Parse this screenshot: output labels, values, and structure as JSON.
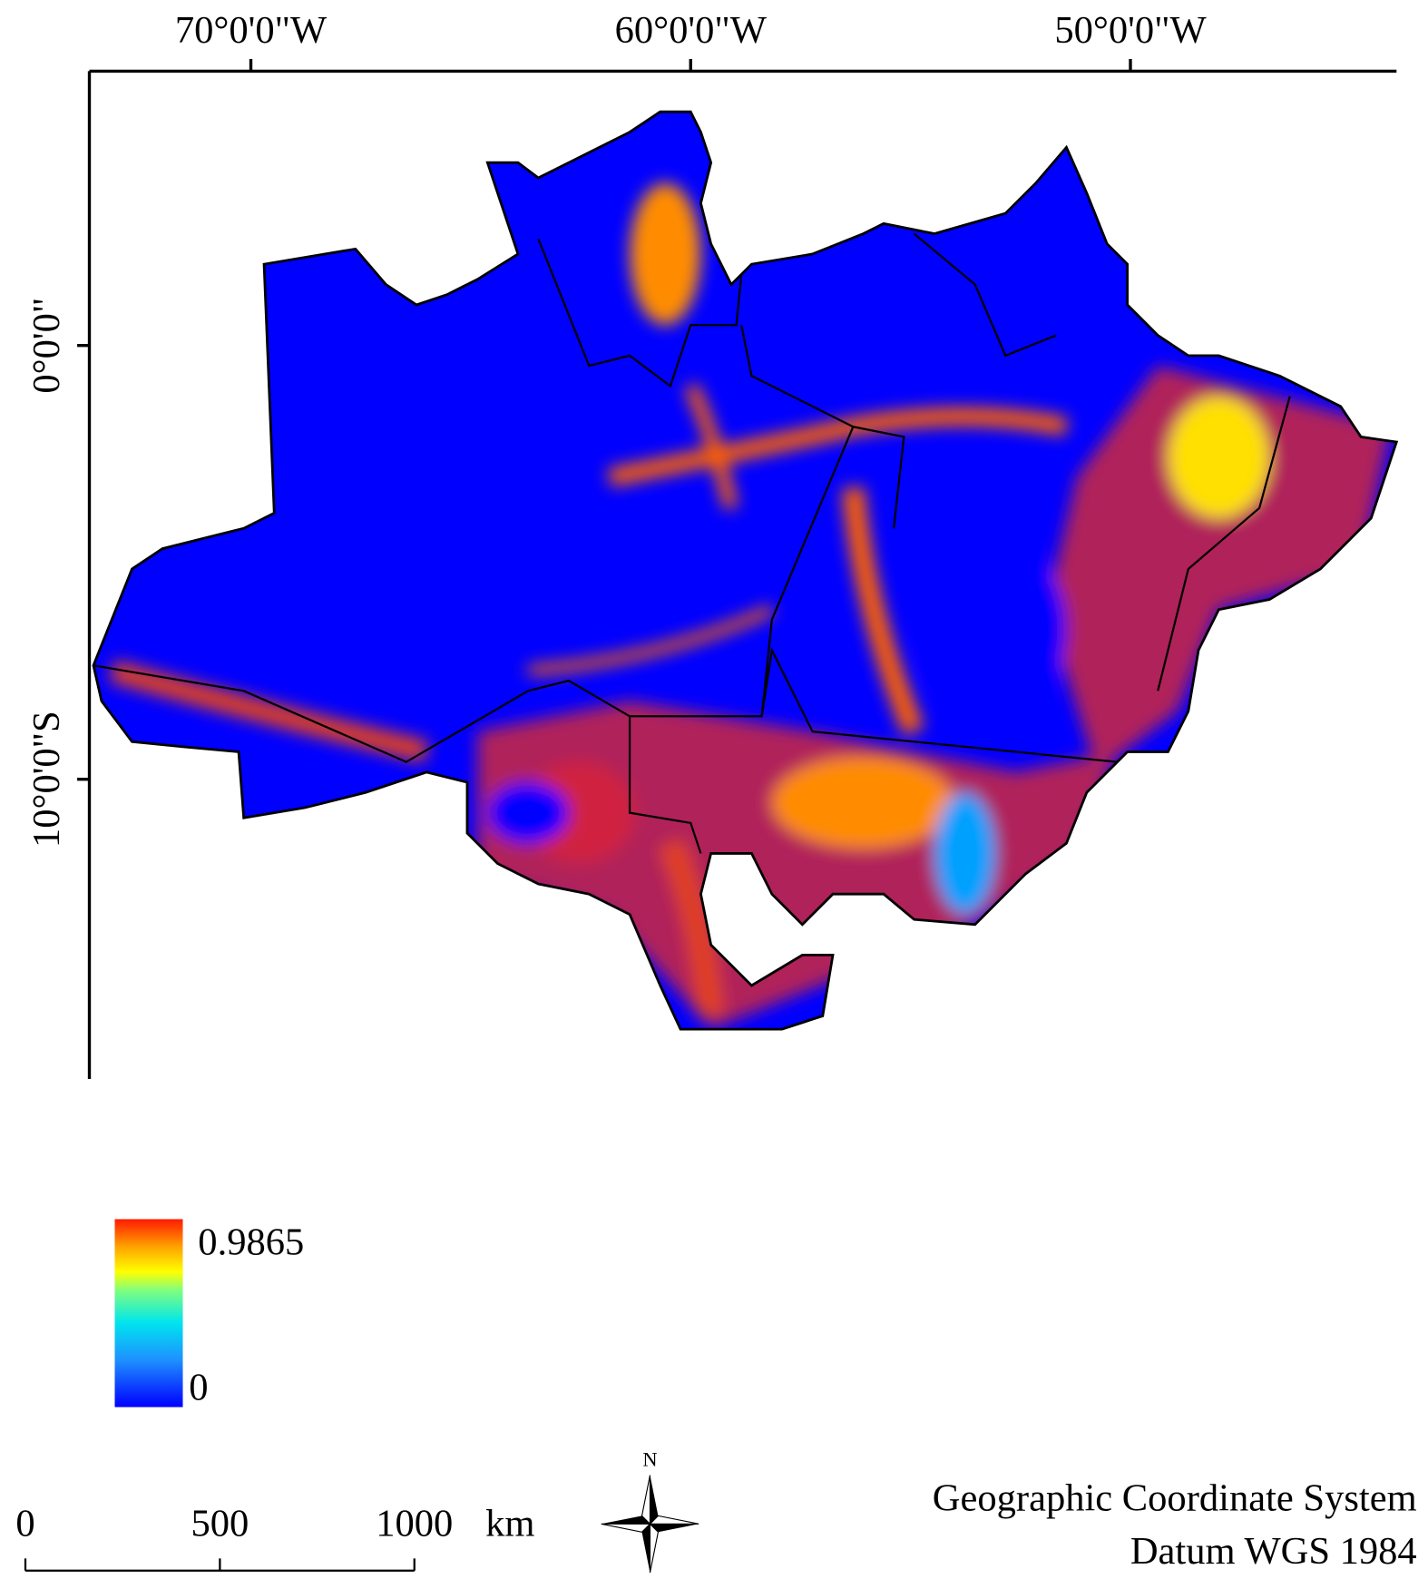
{
  "axes": {
    "x_ticks": [
      {
        "value": -70,
        "label": "70°0'0\"W"
      },
      {
        "value": -60,
        "label": "60°0'0\"W"
      },
      {
        "value": -50,
        "label": "50°0'0\"W"
      }
    ],
    "y_ticks": [
      {
        "value": 0,
        "label": "0°0'0\""
      },
      {
        "value": -10,
        "label": "10°0'0\"S"
      }
    ]
  },
  "legend": {
    "max": 0.9865,
    "min": 0
  },
  "scale_bar": {
    "ticks": [
      0,
      500,
      1000
    ],
    "unit": "km"
  },
  "north_arrow": {
    "label": "N"
  },
  "crs": {
    "lines": [
      "Geographic Coordinate System",
      "Datum WGS 1984"
    ]
  }
}
